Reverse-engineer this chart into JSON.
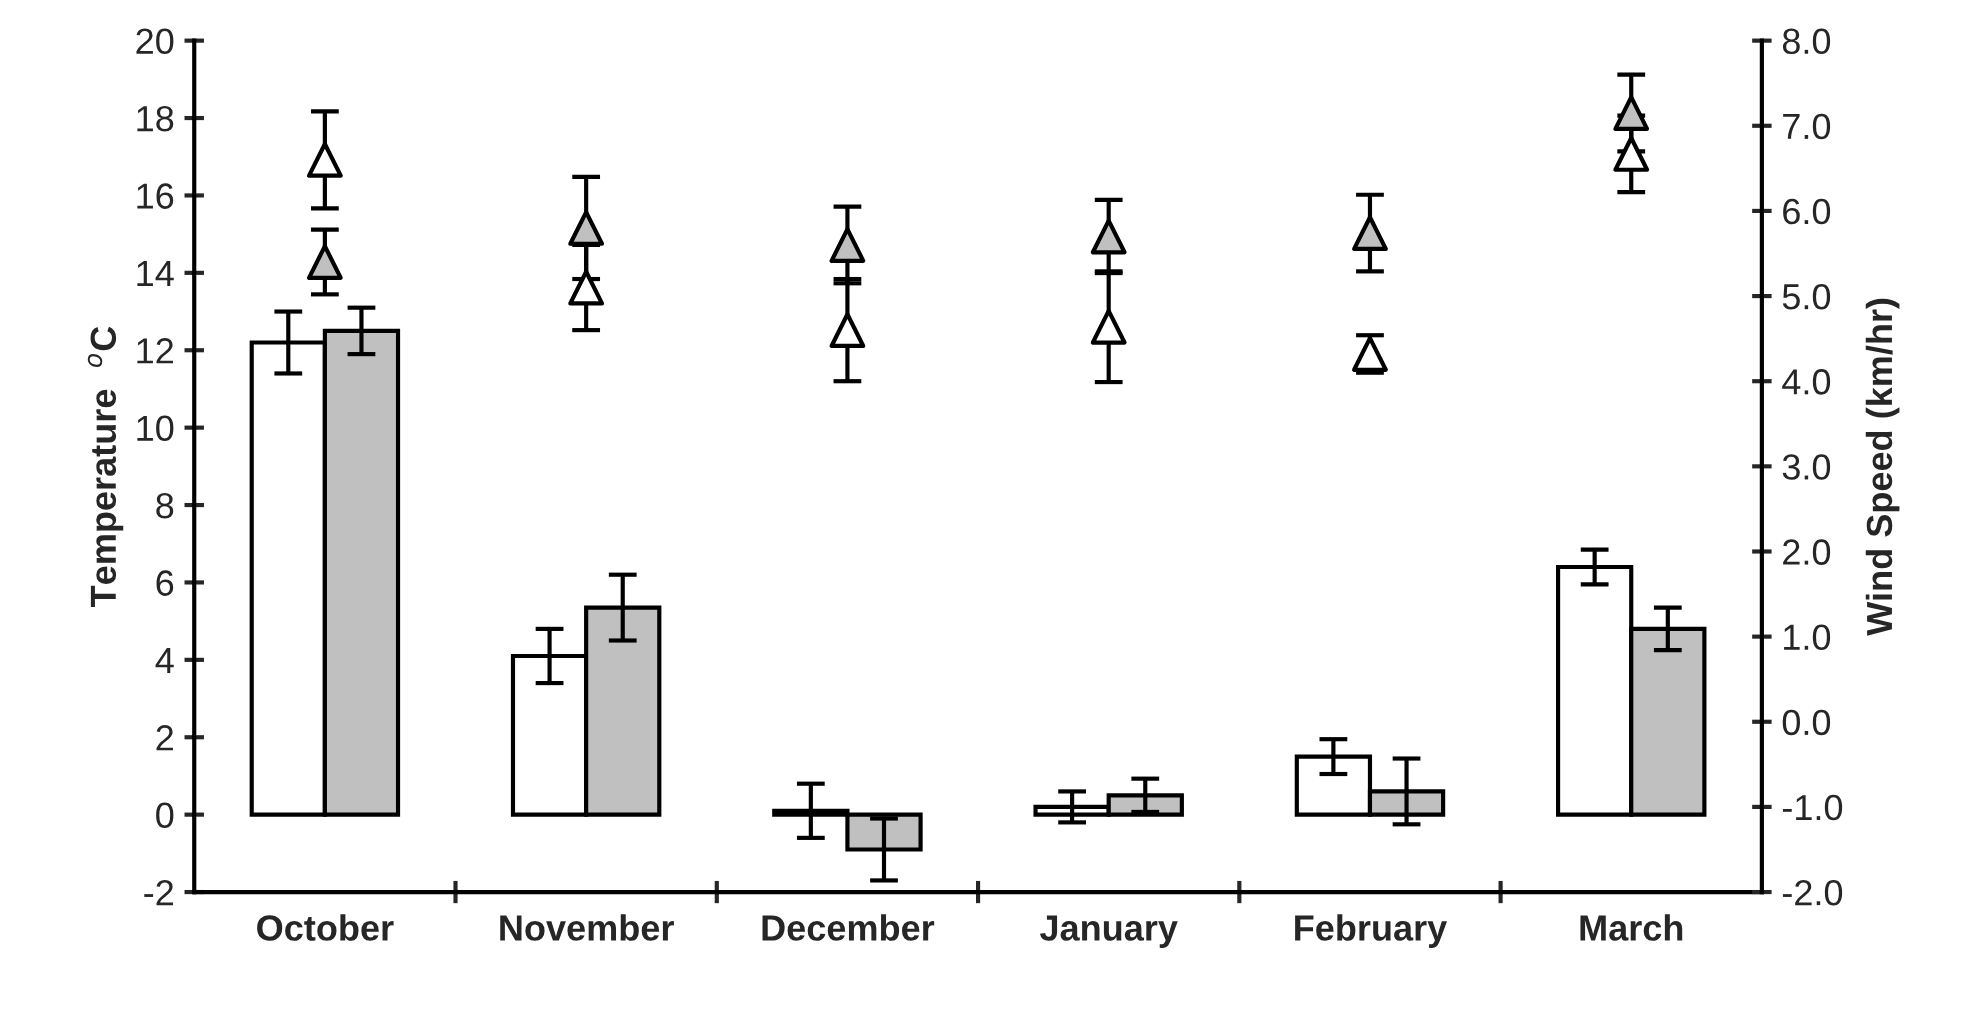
{
  "chart_data": {
    "type": "bar",
    "ylabel": "Temperature  $^{o}$C",
    "y2label": "Wind Speed (km/hr)",
    "categories": [
      "October",
      "November",
      "December",
      "January",
      "February",
      "March"
    ],
    "series": [
      {
        "color": "#ffffff",
        "values": [
          12.2,
          4.1,
          0.1,
          0.2,
          1.5,
          6.4
        ],
        "errors": [
          0.8,
          0.7,
          0.7,
          0.4,
          0.45,
          0.45
        ]
      },
      {
        "color": "#c0c0c0",
        "values": [
          12.5,
          5.35,
          -0.9,
          0.5,
          0.6,
          4.8
        ],
        "errors": [
          0.6,
          0.85,
          0.8,
          0.43,
          0.85,
          0.55
        ]
      },
      {
        "type": "scatter",
        "axis": "y2",
        "marker": "triangle",
        "color": "#ffffff",
        "values": [
          6.6,
          5.1,
          4.6,
          4.64,
          4.32,
          6.67
        ],
        "errors": [
          0.57,
          0.5,
          0.6,
          0.65,
          0.22,
          0.45
        ]
      },
      {
        "type": "scatter",
        "axis": "y2",
        "marker": "triangle",
        "color": "#c0c0c0",
        "values": [
          5.4,
          5.8,
          5.6,
          5.7,
          5.74,
          7.15
        ],
        "errors": [
          0.38,
          0.6,
          0.45,
          0.43,
          0.45,
          0.45
        ]
      }
    ],
    "ylim": [
      -2,
      20
    ],
    "yticks": [
      -2,
      0,
      2,
      4,
      6,
      8,
      10,
      12,
      14,
      16,
      18,
      20
    ],
    "y2lim": [
      -2,
      8
    ],
    "y2ticks": [
      {
        "value": -2,
        "label": "-2.0"
      },
      {
        "value": -1,
        "label": "-1.0"
      },
      {
        "value": 0,
        "label": "0.0"
      },
      {
        "value": 1,
        "label": "1.0"
      },
      {
        "value": 2,
        "label": "2.0"
      },
      {
        "value": 3,
        "label": "3.0"
      },
      {
        "value": 4,
        "label": "4.0"
      },
      {
        "value": 5,
        "label": "5.0"
      },
      {
        "value": 6,
        "label": "6.0"
      },
      {
        "value": 7,
        "label": "7.0"
      },
      {
        "value": 8,
        "label": "8.0"
      }
    ],
    "grid": false,
    "legend": false
  }
}
